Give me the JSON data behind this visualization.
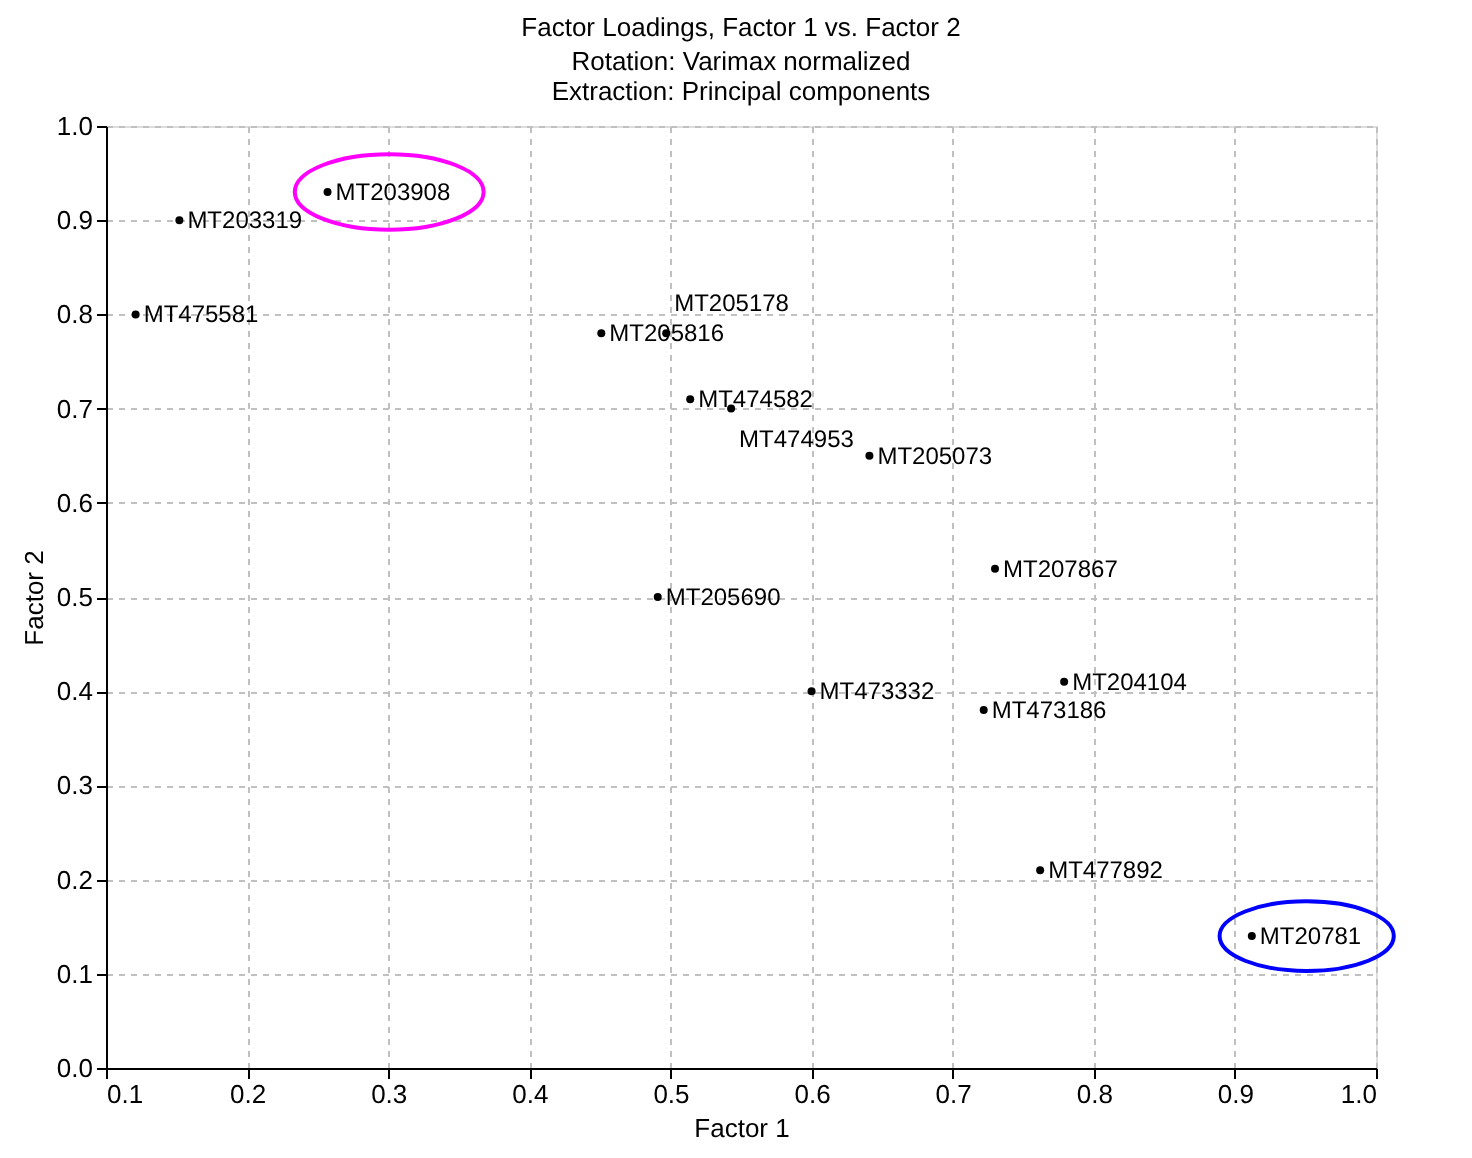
{
  "chart_data": {
    "type": "scatter",
    "title": "Factor Loadings, Factor 1 vs. Factor 2",
    "subtitle": [
      "Rotation: Varimax normalized",
      "Extraction: Principal components"
    ],
    "xlabel": "Factor 1",
    "ylabel": "Factor 2",
    "xlim": [
      0.1,
      1.0
    ],
    "ylim": [
      0.0,
      1.0
    ],
    "xticks": [
      {
        "value": 0.1,
        "label": "0.1"
      },
      {
        "value": 0.2,
        "label": "0.2"
      },
      {
        "value": 0.3,
        "label": "0.3"
      },
      {
        "value": 0.4,
        "label": "0.4"
      },
      {
        "value": 0.5,
        "label": "0.5"
      },
      {
        "value": 0.6,
        "label": "0.6"
      },
      {
        "value": 0.7,
        "label": "0.7"
      },
      {
        "value": 0.8,
        "label": "0.8"
      },
      {
        "value": 0.9,
        "label": "0.9"
      },
      {
        "value": 1.0,
        "label": "1.0"
      }
    ],
    "yticks": [
      {
        "value": 0.0,
        "label": "0.0"
      },
      {
        "value": 0.1,
        "label": "0.1"
      },
      {
        "value": 0.2,
        "label": "0.2"
      },
      {
        "value": 0.3,
        "label": "0.3"
      },
      {
        "value": 0.4,
        "label": "0.4"
      },
      {
        "value": 0.5,
        "label": "0.5"
      },
      {
        "value": 0.6,
        "label": "0.6"
      },
      {
        "value": 0.7,
        "label": "0.7"
      },
      {
        "value": 0.8,
        "label": "0.8"
      },
      {
        "value": 0.9,
        "label": "0.9"
      },
      {
        "value": 1.0,
        "label": "1.0"
      }
    ],
    "grid": true,
    "marker": "circle",
    "series": [
      {
        "color": "#000000",
        "x": [
          0.257,
          0.152,
          0.121,
          0.451,
          0.497,
          0.514,
          0.543,
          0.641,
          0.491,
          0.6,
          0.722,
          0.779,
          0.762,
          0.912,
          0.73
        ],
        "values": [
          0.93,
          0.9,
          0.8,
          0.78,
          0.78,
          0.71,
          0.7,
          0.65,
          0.5,
          0.4,
          0.38,
          0.41,
          0.21,
          0.14,
          0.53
        ]
      }
    ],
    "annotations": [
      {
        "text": "MT203908",
        "x": 0.257,
        "y": 0.93
      },
      {
        "text": "MT203319",
        "x": 0.152,
        "y": 0.9
      },
      {
        "text": "MT475581",
        "x": 0.121,
        "y": 0.8
      },
      {
        "text": "MT205816",
        "x": 0.451,
        "y": 0.78
      },
      {
        "text": "MT205178",
        "x": 0.497,
        "y": 0.78
      },
      {
        "text": "MT474582",
        "x": 0.514,
        "y": 0.71
      },
      {
        "text": "MT474953",
        "x": 0.543,
        "y": 0.7
      },
      {
        "text": "MT205073",
        "x": 0.641,
        "y": 0.65
      },
      {
        "text": "MT205690",
        "x": 0.491,
        "y": 0.5
      },
      {
        "text": "MT473332",
        "x": 0.6,
        "y": 0.4
      },
      {
        "text": "MT473186",
        "x": 0.722,
        "y": 0.38
      },
      {
        "text": "MT204104",
        "x": 0.779,
        "y": 0.41
      },
      {
        "text": "MT477892",
        "x": 0.762,
        "y": 0.21
      },
      {
        "text": "MT20781",
        "x": 0.912,
        "y": 0.14
      },
      {
        "text": "MT207867",
        "x": 0.73,
        "y": 0.53
      }
    ]
  }
}
